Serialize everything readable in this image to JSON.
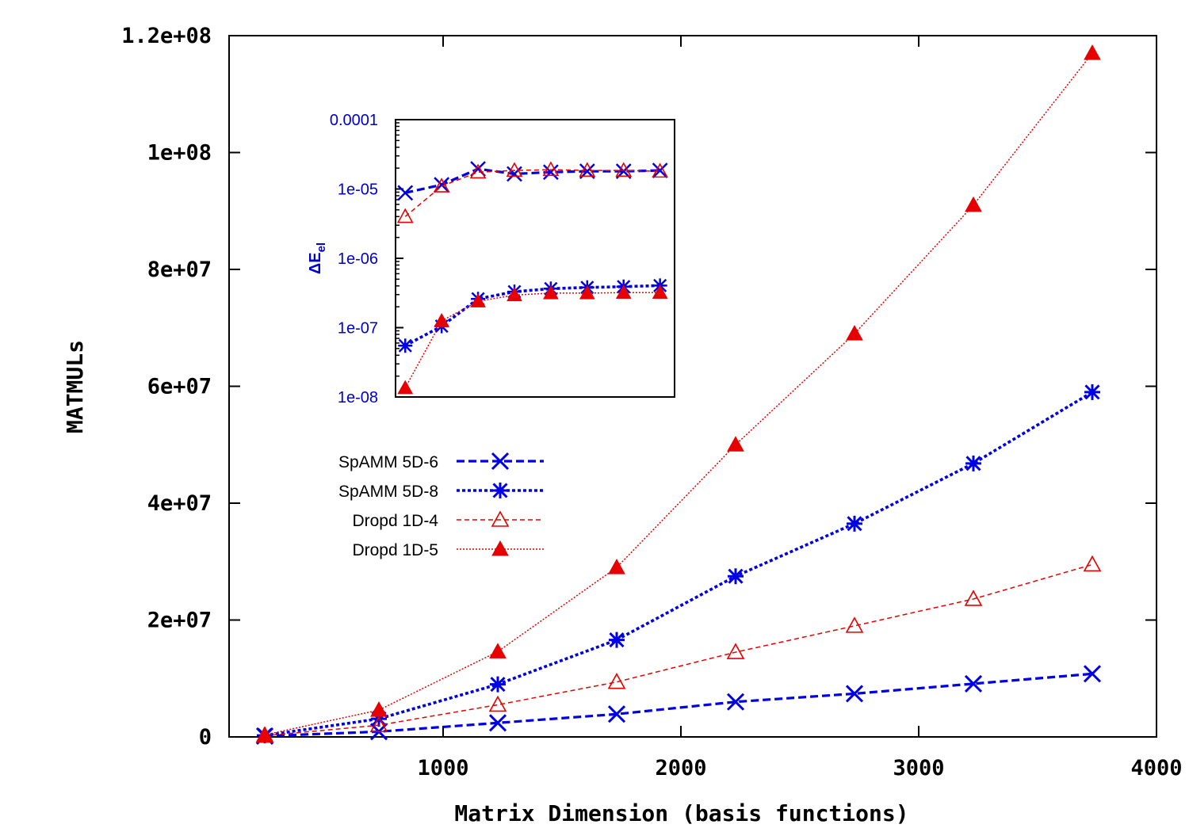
{
  "colors": {
    "blue": "#0000e6",
    "red": "#e60000",
    "axis": "#000000",
    "inset_text": "#0000cc"
  },
  "chart_data": [
    {
      "type": "line",
      "xlabel": "Matrix Dimension (basis functions)",
      "ylabel": "MATMULs",
      "xlim": [
        100,
        4000
      ],
      "ylim": [
        0,
        120000000
      ],
      "xticks": [
        1000,
        2000,
        3000,
        4000
      ],
      "xtick_labels": [
        "1000",
        "2000",
        "3000",
        "4000"
      ],
      "yticks": [
        0,
        20000000,
        40000000,
        60000000,
        80000000,
        100000000,
        120000000
      ],
      "ytick_labels": [
        "0",
        "2e+07",
        "4e+07",
        "6e+07",
        "8e+07",
        "1e+08",
        "1.2e+08"
      ],
      "x": [
        250,
        730,
        1230,
        1730,
        2230,
        2730,
        3230,
        3730
      ],
      "series": [
        {
          "name": "SpAMM 5D-6",
          "marker": "x",
          "line": "dashed-thick",
          "color": "blue",
          "values": [
            150000,
            900000,
            2400000,
            3900000,
            6000000,
            7400000,
            9100000,
            10800000
          ]
        },
        {
          "name": "SpAMM 5D-8",
          "marker": "asterisk",
          "line": "dotted-thick",
          "color": "blue",
          "values": [
            250000,
            3100000,
            9000000,
            16600000,
            27500000,
            36500000,
            46800000,
            59000000
          ]
        },
        {
          "name": "Dropd 1D-4",
          "marker": "triangle-open",
          "line": "dashed-thin",
          "color": "red",
          "values": [
            200000,
            2000000,
            5500000,
            9400000,
            14500000,
            19000000,
            23600000,
            29500000
          ]
        },
        {
          "name": "Dropd 1D-5",
          "marker": "triangle-filled",
          "line": "dotted-thin",
          "color": "red",
          "values": [
            350000,
            4600000,
            14600000,
            29000000,
            50000000,
            69000000,
            91000000,
            117000000
          ]
        }
      ],
      "legend": [
        {
          "label": "SpAMM 5D-6"
        },
        {
          "label": "SpAMM 5D-8"
        },
        {
          "label": "Dropd 1D-4"
        },
        {
          "label": "Dropd 1D-5"
        }
      ],
      "legend_placement": "center-left"
    },
    {
      "type": "line",
      "scale": "log",
      "ylabel_main": "ΔE",
      "ylabel_sub": "el",
      "xlim": [
        800,
        1950
      ],
      "ylim": [
        1e-08,
        0.0001
      ],
      "yticks": [
        1e-08,
        1e-07,
        1e-06,
        1e-05,
        0.0001
      ],
      "ytick_labels": [
        "1e-08",
        "1e-07",
        "1e-06",
        "1e-05",
        "0.0001"
      ],
      "x": [
        840,
        990,
        1140,
        1290,
        1440,
        1590,
        1740,
        1890
      ],
      "series": [
        {
          "name": "SpAMM 5D-6",
          "marker": "x",
          "line": "dashed-thick",
          "color": "blue",
          "values": [
            8.8e-06,
            1.15e-05,
            1.95e-05,
            1.65e-05,
            1.75e-05,
            1.8e-05,
            1.8e-05,
            1.85e-05
          ]
        },
        {
          "name": "SpAMM 5D-8",
          "marker": "asterisk",
          "line": "dotted-thick",
          "color": "blue",
          "values": [
            5.5e-08,
            1.05e-07,
            2.6e-07,
            3.3e-07,
            3.65e-07,
            3.8e-07,
            3.9e-07,
            4.05e-07
          ]
        },
        {
          "name": "Dropd 1D-4",
          "marker": "triangle-open",
          "line": "dashed-thin",
          "color": "red",
          "values": [
            4e-06,
            1.1e-05,
            1.75e-05,
            1.85e-05,
            1.9e-05,
            1.85e-05,
            1.85e-05,
            1.8e-05
          ]
        },
        {
          "name": "Dropd 1D-5",
          "marker": "triangle-filled",
          "line": "dotted-thin",
          "color": "red",
          "values": [
            1.35e-08,
            1.25e-07,
            2.4e-07,
            2.95e-07,
            3.15e-07,
            3.15e-07,
            3.2e-07,
            3.2e-07
          ]
        }
      ]
    }
  ]
}
